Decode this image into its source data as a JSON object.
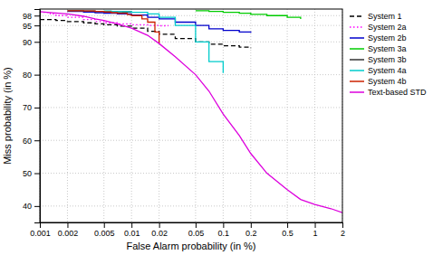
{
  "chart_data": {
    "type": "line",
    "xlabel": "False Alarm probability (in %)",
    "ylabel": "Miss probability (in %)",
    "log": "x",
    "xlim": [
      0.001,
      2
    ],
    "ylim": [
      35,
      100
    ],
    "xticks": [
      0.001,
      0.002,
      0.005,
      0.01,
      0.02,
      0.05,
      0.1,
      0.2,
      0.5,
      1,
      2
    ],
    "yticks": [
      40,
      50,
      60,
      70,
      80,
      90,
      95,
      98
    ],
    "grid": true,
    "legend": "upper right",
    "series": [
      {
        "name": "System 1",
        "type": "step",
        "color": "#000000",
        "line_style": "dashed",
        "x": [
          0.001,
          0.0015,
          0.002,
          0.003,
          0.004,
          0.005,
          0.007,
          0.01,
          0.015,
          0.02,
          0.03,
          0.05,
          0.07,
          0.1,
          0.15,
          0.2
        ],
        "values": [
          96.8,
          96.5,
          96.2,
          95.8,
          95.5,
          95.2,
          94.8,
          94.2,
          93.2,
          92.3,
          91.0,
          90.0,
          89.3,
          88.8,
          88.4,
          88.1
        ]
      },
      {
        "name": "System 2a",
        "type": "step",
        "color": "#ff00ff",
        "line_style": "dotted",
        "x": [
          0.001,
          0.0013,
          0.0015,
          0.002,
          0.003,
          0.004,
          0.005,
          0.007,
          0.01,
          0.015,
          0.02,
          0.025
        ],
        "values": [
          99.0,
          98.5,
          98.0,
          97.5,
          96.8,
          96.2,
          95.8,
          95.5,
          95.2,
          95.0,
          94.9,
          94.8
        ]
      },
      {
        "name": "System 2b",
        "type": "step",
        "color": "#0000cc",
        "line_style": "solid",
        "x": [
          0.002,
          0.003,
          0.004,
          0.005,
          0.007,
          0.01,
          0.015,
          0.02,
          0.03,
          0.05,
          0.07,
          0.1,
          0.15,
          0.2
        ],
        "values": [
          99.3,
          99.1,
          98.9,
          98.7,
          98.5,
          98.2,
          97.5,
          97.0,
          96.0,
          95.0,
          94.0,
          93.5,
          93.0,
          92.8
        ]
      },
      {
        "name": "System 3a",
        "type": "step",
        "color": "#00cc00",
        "line_style": "solid",
        "x": [
          0.05,
          0.07,
          0.1,
          0.15,
          0.2,
          0.3,
          0.5,
          0.7
        ],
        "values": [
          99.5,
          99.3,
          99.0,
          98.7,
          98.4,
          98.0,
          97.5,
          97.0
        ]
      },
      {
        "name": "System 3b",
        "type": "step",
        "color": "#333333",
        "line_style": "solid",
        "x": [
          0.002,
          0.003,
          0.004,
          0.005,
          0.006,
          0.007,
          0.008,
          0.01
        ],
        "values": [
          99.5,
          99.4,
          99.3,
          99.25,
          99.2,
          99.15,
          99.1,
          99.05
        ]
      },
      {
        "name": "System 4a",
        "type": "step",
        "color": "#00cccc",
        "line_style": "solid",
        "x": [
          0.005,
          0.006,
          0.007,
          0.01,
          0.015,
          0.02,
          0.03,
          0.05,
          0.07,
          0.1
        ],
        "values": [
          99.4,
          99.3,
          99.2,
          99.0,
          98.5,
          97.5,
          95.0,
          90.0,
          84.0,
          80.5
        ]
      },
      {
        "name": "System 4b",
        "type": "step",
        "color": "#cc2200",
        "line_style": "solid",
        "x": [
          0.002,
          0.003,
          0.004,
          0.005,
          0.006,
          0.007,
          0.009,
          0.01,
          0.013,
          0.015,
          0.018,
          0.02
        ],
        "values": [
          99.5,
          99.4,
          99.3,
          99.1,
          98.9,
          98.7,
          98.3,
          98.0,
          97.0,
          96.0,
          93.0,
          89.5
        ]
      },
      {
        "name": "Text-based STD",
        "type": "line",
        "color": "#dd00dd",
        "line_style": "solid",
        "x": [
          0.001,
          0.0012,
          0.0015,
          0.002,
          0.003,
          0.004,
          0.005,
          0.007,
          0.01,
          0.015,
          0.02,
          0.03,
          0.05,
          0.07,
          0.1,
          0.15,
          0.2,
          0.3,
          0.5,
          0.7,
          1.0,
          1.5,
          2.0
        ],
        "values": [
          99.2,
          99.0,
          98.8,
          98.5,
          97.8,
          97.0,
          96.5,
          95.5,
          94.2,
          92.0,
          89.5,
          85.5,
          80.0,
          75.0,
          68.0,
          61.5,
          56.0,
          50.0,
          45.0,
          42.0,
          40.5,
          39.2,
          38.0
        ]
      }
    ]
  }
}
